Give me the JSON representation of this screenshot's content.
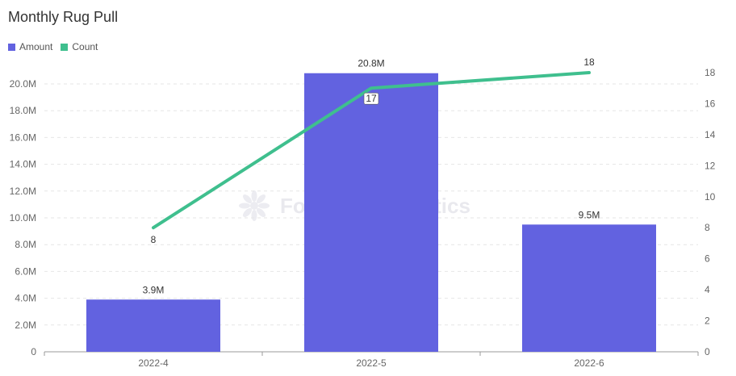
{
  "title": "Monthly Rug Pull",
  "watermark": "Footprint Analytics",
  "colors": {
    "amount": "#6262e0",
    "count": "#3fbf8e"
  },
  "legend": [
    {
      "name": "Amount",
      "color": "#6262e0"
    },
    {
      "name": "Count",
      "color": "#3fbf8e"
    }
  ],
  "chart_data": {
    "type": "bar",
    "title": "Monthly Rug Pull",
    "categories": [
      "2022-4",
      "2022-5",
      "2022-6"
    ],
    "series": [
      {
        "name": "Amount",
        "type": "bar",
        "axis": "left",
        "values": [
          3900000,
          20800000,
          9500000
        ],
        "labels": [
          "3.9M",
          "20.8M",
          "9.5M"
        ]
      },
      {
        "name": "Count",
        "type": "line",
        "axis": "right",
        "values": [
          8,
          17,
          18
        ],
        "labels": [
          "8",
          "17",
          "18"
        ]
      }
    ],
    "y_left": {
      "range": [
        0,
        20000000
      ],
      "ticks": [
        "0",
        "2.0M",
        "4.0M",
        "6.0M",
        "8.0M",
        "10.0M",
        "12.0M",
        "14.0M",
        "16.0M",
        "18.0M",
        "20.0M"
      ]
    },
    "y_right": {
      "range": [
        0,
        18
      ],
      "ticks": [
        "0",
        "2",
        "4",
        "6",
        "8",
        "10",
        "12",
        "14",
        "16",
        "18"
      ]
    },
    "grid": true,
    "legend_position": "top-left"
  }
}
